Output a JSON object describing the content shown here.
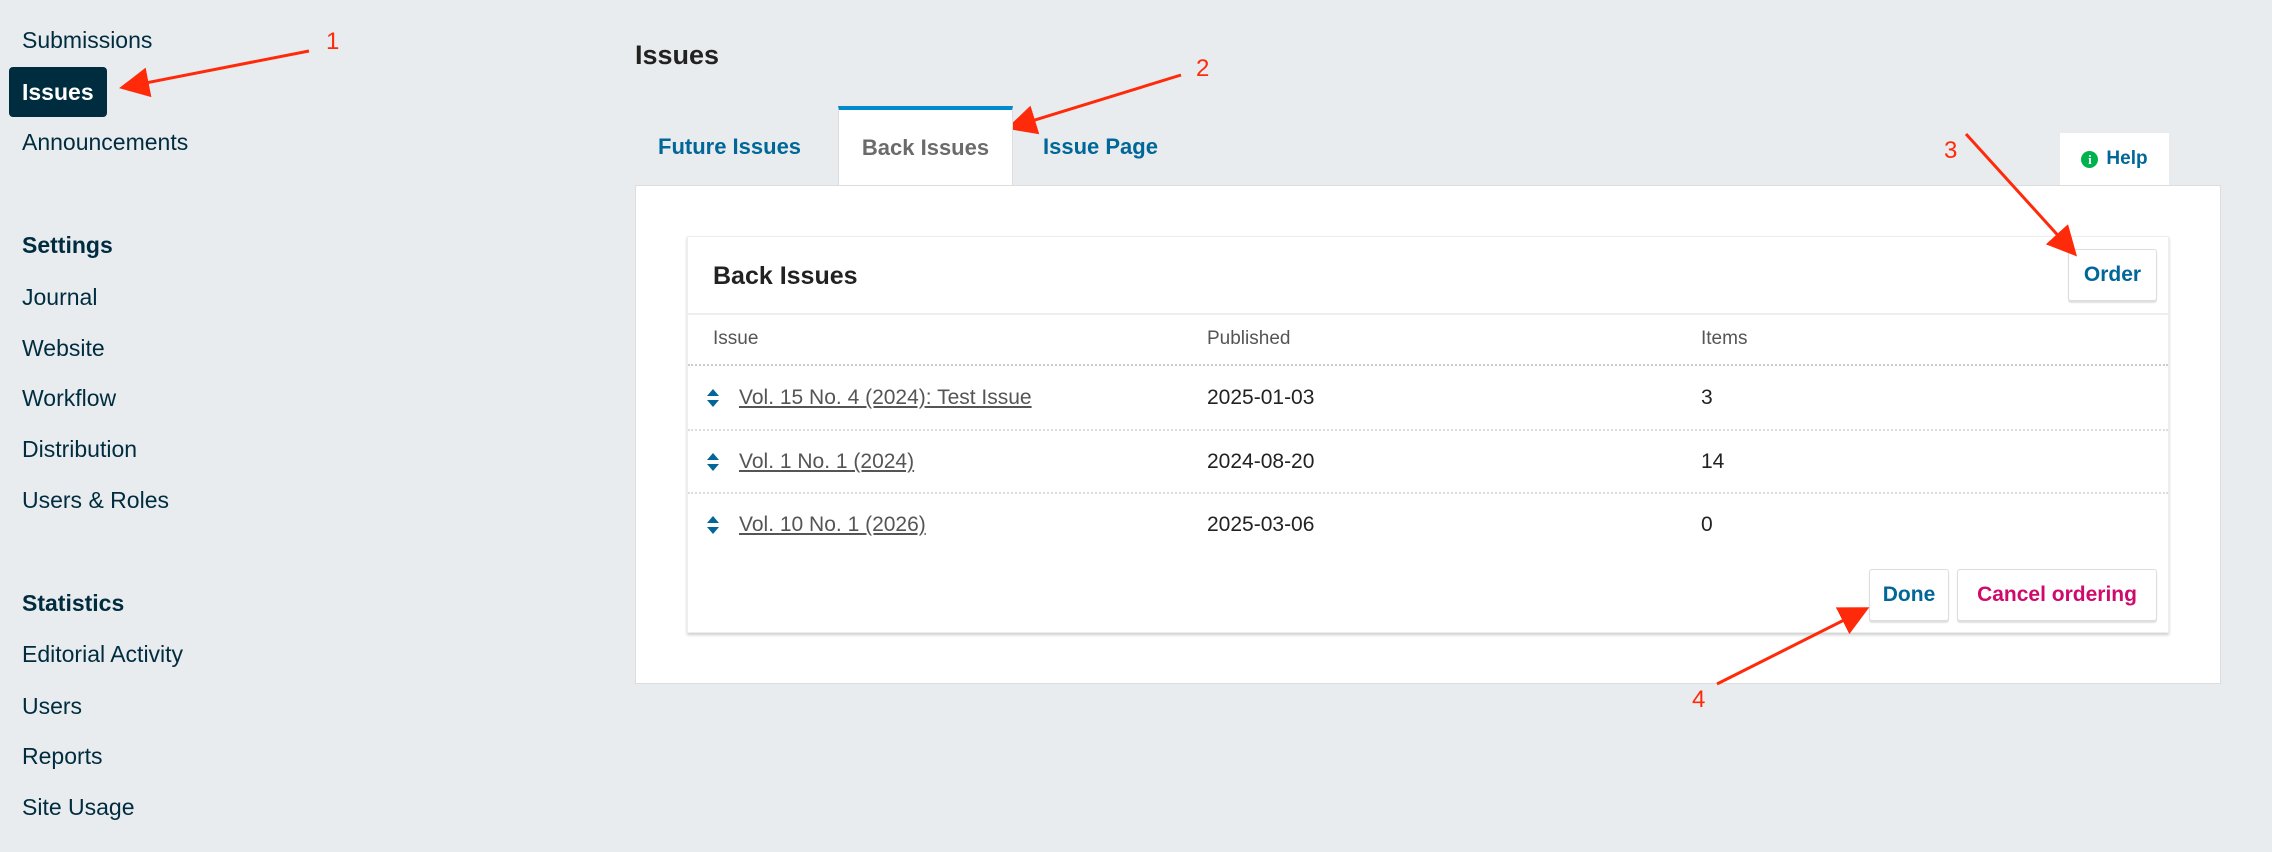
{
  "sidebar": {
    "top_items": [
      {
        "label": "Submissions",
        "active": false
      },
      {
        "label": "Issues",
        "active": true
      },
      {
        "label": "Announcements",
        "active": false
      }
    ],
    "settings": {
      "heading": "Settings",
      "items": [
        "Journal",
        "Website",
        "Workflow",
        "Distribution",
        "Users & Roles"
      ]
    },
    "statistics": {
      "heading": "Statistics",
      "items": [
        "Editorial Activity",
        "Users",
        "Reports",
        "Site Usage"
      ]
    }
  },
  "page": {
    "title": "Issues"
  },
  "tabs": [
    {
      "label": "Future Issues",
      "active": false
    },
    {
      "label": "Back Issues",
      "active": true
    },
    {
      "label": "Issue Page",
      "active": false
    }
  ],
  "help": {
    "label": "Help",
    "icon": "info-icon"
  },
  "card": {
    "title": "Back Issues",
    "order_label": "Order",
    "columns": [
      "Issue",
      "Published",
      "Items"
    ],
    "rows": [
      {
        "issue": "Vol. 15 No. 4 (2024): Test Issue",
        "published": "2025-01-03",
        "items": "3"
      },
      {
        "issue": "Vol. 1 No. 1 (2024)",
        "published": "2024-08-20",
        "items": "14"
      },
      {
        "issue": "Vol. 10 No. 1 (2026)",
        "published": "2025-03-06",
        "items": "0"
      }
    ],
    "done_label": "Done",
    "cancel_label": "Cancel ordering"
  },
  "annotations": [
    "1",
    "2",
    "3",
    "4"
  ],
  "colors": {
    "primary": "#006798",
    "active_nav": "#002c40",
    "cancel": "#d00a6c",
    "annotation": "#ff2a0a",
    "help_icon": "#00b24e",
    "tab_accent": "#008acb"
  }
}
